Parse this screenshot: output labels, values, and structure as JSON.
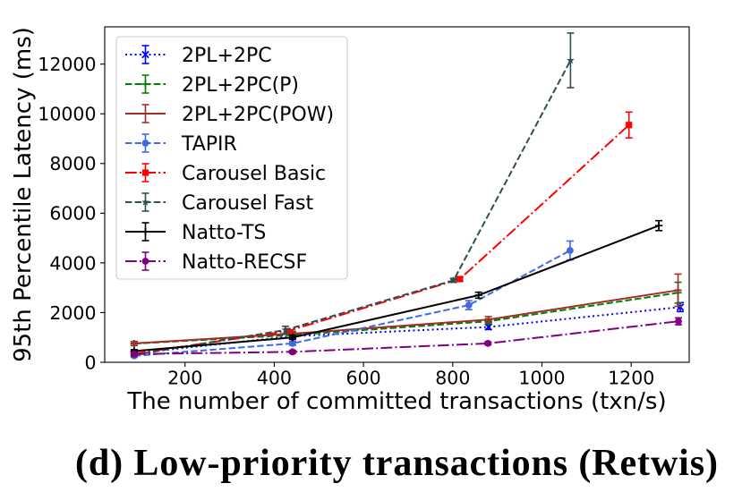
{
  "figure": {
    "caption": "(d) Low-priority transactions (Retwis)"
  },
  "chart_data": {
    "type": "line",
    "xlabel": "The number of committed transactions (txn/s)",
    "ylabel": "95th Percentile Latency (ms)",
    "xlim": [
      20,
      1330
    ],
    "ylim": [
      0,
      13500
    ],
    "xticks": [
      200,
      400,
      600,
      800,
      1000,
      1200
    ],
    "yticks": [
      0,
      2000,
      4000,
      6000,
      8000,
      10000,
      12000
    ],
    "grid": false,
    "legend": "top-left",
    "series": [
      {
        "name": "2PL+2PC",
        "color": "#0000ff",
        "linestyle": "dotted",
        "marker": "x",
        "x": [
          86,
          441,
          880,
          1310
        ],
        "y": [
          360,
          1050,
          1420,
          2220
        ],
        "err": [
          80,
          100,
          100,
          180
        ]
      },
      {
        "name": "2PL+2PC(P)",
        "color": "#008000",
        "linestyle": "dashed",
        "marker": "plus",
        "x": [
          86,
          441,
          880,
          1305
        ],
        "y": [
          750,
          1100,
          1650,
          2800
        ],
        "err": [
          80,
          100,
          100,
          420
        ]
      },
      {
        "name": "2PL+2PC(POW)",
        "color": "#a52a2a",
        "linestyle": "solid",
        "marker": "hline",
        "x": [
          86,
          441,
          880,
          1305
        ],
        "y": [
          760,
          1150,
          1720,
          2900
        ],
        "err": [
          80,
          100,
          120,
          650
        ]
      },
      {
        "name": "TAPIR",
        "color": "#4169e1",
        "linestyle": "dashed",
        "marker": "circle",
        "x": [
          86,
          441,
          836,
          1063
        ],
        "y": [
          260,
          760,
          2300,
          4500
        ],
        "err": [
          60,
          80,
          180,
          380
        ]
      },
      {
        "name": "Carousel Basic",
        "color": "#ff0000",
        "linestyle": "dashdot",
        "marker": "square",
        "x": [
          86,
          429,
          816,
          1195
        ],
        "y": [
          350,
          1250,
          3350,
          9550
        ],
        "err": [
          60,
          100,
          80,
          520
        ]
      },
      {
        "name": "Carousel Fast",
        "color": "#2f4f4f",
        "linestyle": "dashed",
        "marker": "star",
        "x": [
          86,
          425,
          802,
          1064
        ],
        "y": [
          300,
          1300,
          3300,
          12150
        ],
        "err": [
          60,
          150,
          80,
          1100
        ]
      },
      {
        "name": "Natto-TS",
        "color": "#000000",
        "linestyle": "solid",
        "marker": "plus",
        "x": [
          86,
          441,
          858,
          1262
        ],
        "y": [
          450,
          1000,
          2700,
          5500
        ],
        "err": [
          60,
          80,
          120,
          200
        ]
      },
      {
        "name": "Natto-RECSF",
        "color": "#800080",
        "linestyle": "dashdot",
        "marker": "circle",
        "x": [
          86,
          441,
          879,
          1306
        ],
        "y": [
          330,
          420,
          760,
          1650
        ],
        "err": [
          50,
          60,
          60,
          140
        ]
      }
    ]
  }
}
